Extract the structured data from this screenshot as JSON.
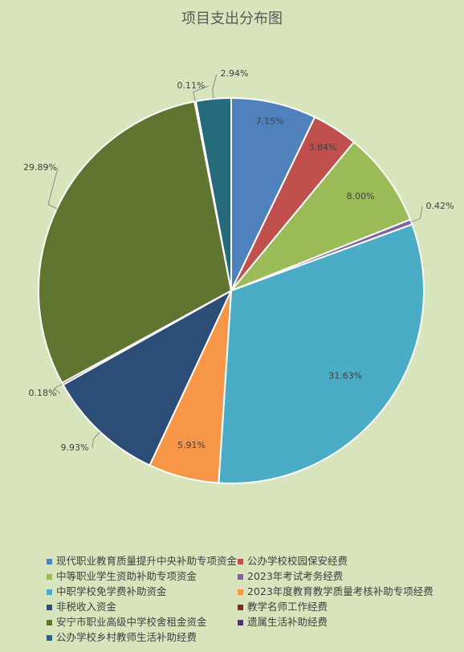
{
  "chart_data": {
    "type": "pie",
    "title": "项目支出分布图",
    "slices": [
      {
        "name": "现代职业教育质量提升中央补助专项资金",
        "value": 7.15,
        "label": "7.15%",
        "color": "#4f81bd"
      },
      {
        "name": "公办学校校园保安经费",
        "value": 3.84,
        "label": "3.84%",
        "color": "#c0504d"
      },
      {
        "name": "中等职业学生资助补助专项资金",
        "value": 8.0,
        "label": "8.00%",
        "color": "#9bbb59"
      },
      {
        "name": "2023年考试考务经费",
        "value": 0.42,
        "label": "0.42%",
        "color": "#8064a2"
      },
      {
        "name": "中职学校免学费补助资金",
        "value": 31.63,
        "label": "31.63%",
        "color": "#4bacc6"
      },
      {
        "name": "2023年度教育教学质量考核补助专项经费",
        "value": 5.91,
        "label": "5.91%",
        "color": "#f79646"
      },
      {
        "name": "非税收入资金",
        "value": 9.93,
        "label": "9.93%",
        "color": "#2c4d75"
      },
      {
        "name": "教学名师工作经费",
        "value": 0.18,
        "label": "0.18%",
        "color": "#772c2a"
      },
      {
        "name": "安宁市职业高级中学校舍租金资金",
        "value": 29.89,
        "label": "29.89%",
        "color": "#5f7530"
      },
      {
        "name": "遗属生活补助经费",
        "value": 0.11,
        "label": "0.11%",
        "color": "#4d3b62"
      },
      {
        "name": "公办学校乡村教师生活补助经费",
        "value": 2.94,
        "label": "2.94%",
        "color": "#276a7c"
      }
    ],
    "legend_position": "bottom"
  }
}
